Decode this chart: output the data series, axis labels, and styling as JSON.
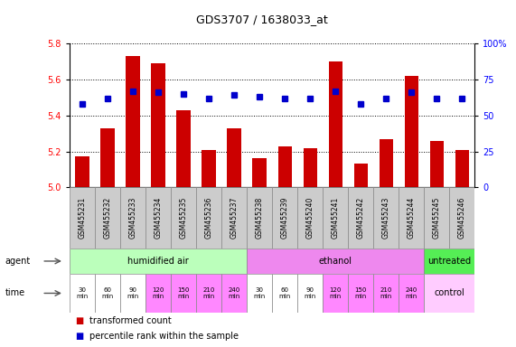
{
  "title": "GDS3707 / 1638033_at",
  "samples": [
    "GSM455231",
    "GSM455232",
    "GSM455233",
    "GSM455234",
    "GSM455235",
    "GSM455236",
    "GSM455237",
    "GSM455238",
    "GSM455239",
    "GSM455240",
    "GSM455241",
    "GSM455242",
    "GSM455243",
    "GSM455244",
    "GSM455245",
    "GSM455246"
  ],
  "transformed_count": [
    5.17,
    5.33,
    5.73,
    5.69,
    5.43,
    5.21,
    5.33,
    5.16,
    5.23,
    5.22,
    5.7,
    5.13,
    5.27,
    5.62,
    5.26,
    5.21
  ],
  "percentile_rank": [
    58,
    62,
    67,
    66,
    65,
    62,
    64,
    63,
    62,
    62,
    67,
    58,
    62,
    66,
    62,
    62
  ],
  "ylim_left": [
    5.0,
    5.8
  ],
  "ylim_right": [
    0,
    100
  ],
  "yticks_left": [
    5.0,
    5.2,
    5.4,
    5.6,
    5.8
  ],
  "yticks_right": [
    0,
    25,
    50,
    75,
    100
  ],
  "bar_color": "#cc0000",
  "dot_color": "#0000cc",
  "agent_groups": [
    {
      "label": "humidified air",
      "start": 0,
      "end": 7,
      "color": "#bbffbb"
    },
    {
      "label": "ethanol",
      "start": 7,
      "end": 14,
      "color": "#ee88ee"
    },
    {
      "label": "untreated",
      "start": 14,
      "end": 16,
      "color": "#55ee55"
    }
  ],
  "time_labels_14": [
    "30\nmin",
    "60\nmin",
    "90\nmin",
    "120\nmin",
    "150\nmin",
    "210\nmin",
    "240\nmin",
    "30\nmin",
    "60\nmin",
    "90\nmin",
    "120\nmin",
    "150\nmin",
    "210\nmin",
    "240\nmin"
  ],
  "time_colors_14": [
    "#ffffff",
    "#ffffff",
    "#ffffff",
    "#ff88ff",
    "#ff88ff",
    "#ff88ff",
    "#ff88ff",
    "#ffffff",
    "#ffffff",
    "#ffffff",
    "#ff88ff",
    "#ff88ff",
    "#ff88ff",
    "#ff88ff"
  ],
  "control_label": "control",
  "control_color": "#ffccff",
  "legend_items": [
    {
      "label": "transformed count",
      "color": "#cc0000"
    },
    {
      "label": "percentile rank within the sample",
      "color": "#0000cc"
    }
  ],
  "fig_width": 5.71,
  "fig_height": 3.84,
  "dpi": 100
}
